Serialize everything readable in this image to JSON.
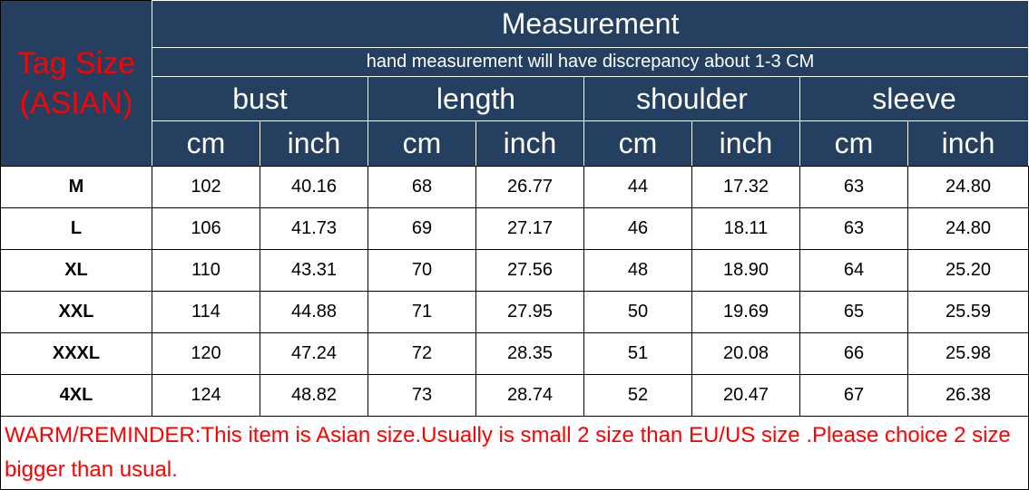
{
  "header": {
    "tag_size": "Tag Size",
    "tag_region": "(ASIAN)",
    "title": "Measurement",
    "note": "hand measurement will have discrepancy about 1-3 CM",
    "groups": [
      "bust",
      "length",
      "shoulder",
      "sleeve"
    ],
    "units": [
      "cm",
      "inch",
      "cm",
      "inch",
      "cm",
      "inch",
      "cm",
      "inch"
    ]
  },
  "rows": [
    {
      "size": "M",
      "values": [
        "102",
        "40.16",
        "68",
        "26.77",
        "44",
        "17.32",
        "63",
        "24.80"
      ]
    },
    {
      "size": "L",
      "values": [
        "106",
        "41.73",
        "69",
        "27.17",
        "46",
        "18.11",
        "63",
        "24.80"
      ]
    },
    {
      "size": "XL",
      "values": [
        "110",
        "43.31",
        "70",
        "27.56",
        "48",
        "18.90",
        "64",
        "25.20"
      ]
    },
    {
      "size": "XXL",
      "values": [
        "114",
        "44.88",
        "71",
        "27.95",
        "50",
        "19.69",
        "65",
        "25.59"
      ]
    },
    {
      "size": "XXXL",
      "values": [
        "120",
        "47.24",
        "72",
        "28.35",
        "51",
        "20.08",
        "66",
        "25.98"
      ]
    },
    {
      "size": "4XL",
      "values": [
        "124",
        "48.82",
        "73",
        "28.74",
        "52",
        "20.47",
        "67",
        "26.38"
      ]
    }
  ],
  "reminder": "WARM/REMINDER:This item is Asian size.Usually is small 2 size than EU/US size .Please choice 2 size bigger than usual.",
  "colors": {
    "header_bg": "#243f60",
    "header_text": "#ffffff",
    "accent_red": "#ff0000"
  }
}
